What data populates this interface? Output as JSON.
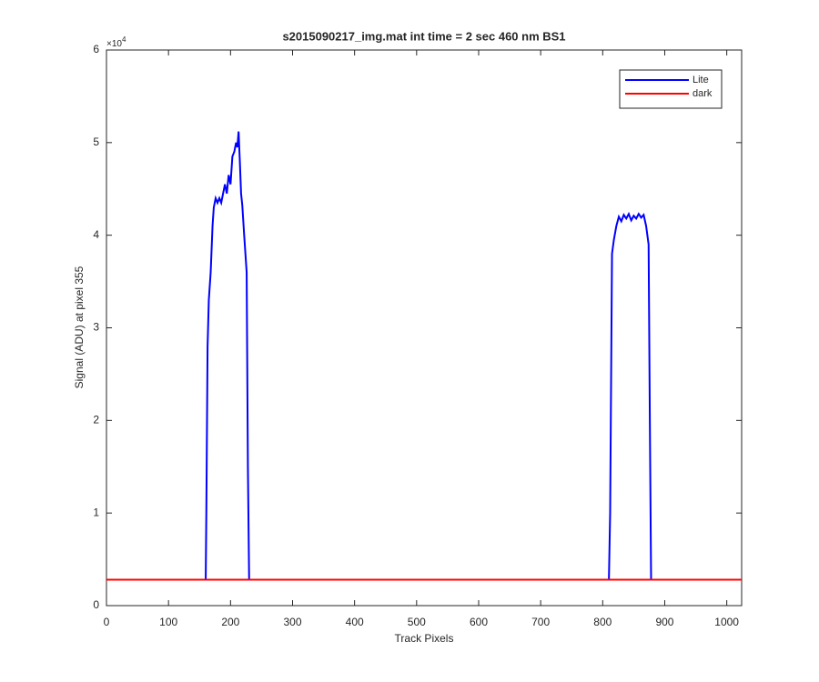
{
  "chart_data": {
    "type": "line",
    "title": "s2015090217_img.mat int time = 2 sec  460 nm BS1",
    "x_label": "Track Pixels",
    "y_label": "Signal (ADU) at pixel 355",
    "y_multiplier": {
      "base": "×10",
      "exponent": "4"
    },
    "xlim": [
      0,
      1024
    ],
    "ylim": [
      0,
      60000
    ],
    "xticks": [
      0,
      100,
      200,
      300,
      400,
      500,
      600,
      700,
      800,
      900,
      1000
    ],
    "yticks": [
      {
        "value": 0,
        "label": "0"
      },
      {
        "value": 10000,
        "label": "1"
      },
      {
        "value": 20000,
        "label": "2"
      },
      {
        "value": 30000,
        "label": "3"
      },
      {
        "value": 40000,
        "label": "4"
      },
      {
        "value": 50000,
        "label": "5"
      },
      {
        "value": 60000,
        "label": "6"
      }
    ],
    "grid": false,
    "legend": "northeast",
    "series": [
      {
        "name": "Lite",
        "color": "#0000ff",
        "x": [
          0,
          160,
          161,
          163,
          165,
          168,
          171,
          173,
          176,
          179,
          182,
          185,
          188,
          191,
          194,
          197,
          200,
          203,
          206,
          209,
          211,
          213,
          215,
          217,
          219,
          222,
          224,
          226,
          228,
          230,
          810,
          812,
          815,
          818,
          822,
          826,
          830,
          834,
          838,
          842,
          846,
          850,
          854,
          858,
          862,
          866,
          870,
          874,
          876,
          878,
          1024
        ],
        "values": [
          2800,
          2800,
          10000,
          28000,
          33000,
          36000,
          41000,
          43000,
          44000,
          43500,
          44000,
          43500,
          44500,
          45500,
          44500,
          46500,
          45500,
          48500,
          49000,
          50000,
          49500,
          51200,
          48000,
          44500,
          43200,
          40000,
          38000,
          36000,
          15000,
          2800,
          2800,
          10000,
          38000,
          39500,
          41000,
          42000,
          41500,
          42200,
          41800,
          42300,
          41600,
          42100,
          41800,
          42300,
          41900,
          42200,
          41000,
          39000,
          20000,
          2800,
          2800
        ]
      },
      {
        "name": "dark",
        "color": "#ff0000",
        "x": [
          0,
          128,
          256,
          384,
          512,
          640,
          768,
          896,
          1024
        ],
        "values": [
          2800,
          2800,
          2800,
          2800,
          2800,
          2800,
          2800,
          2800,
          2800
        ]
      }
    ]
  }
}
